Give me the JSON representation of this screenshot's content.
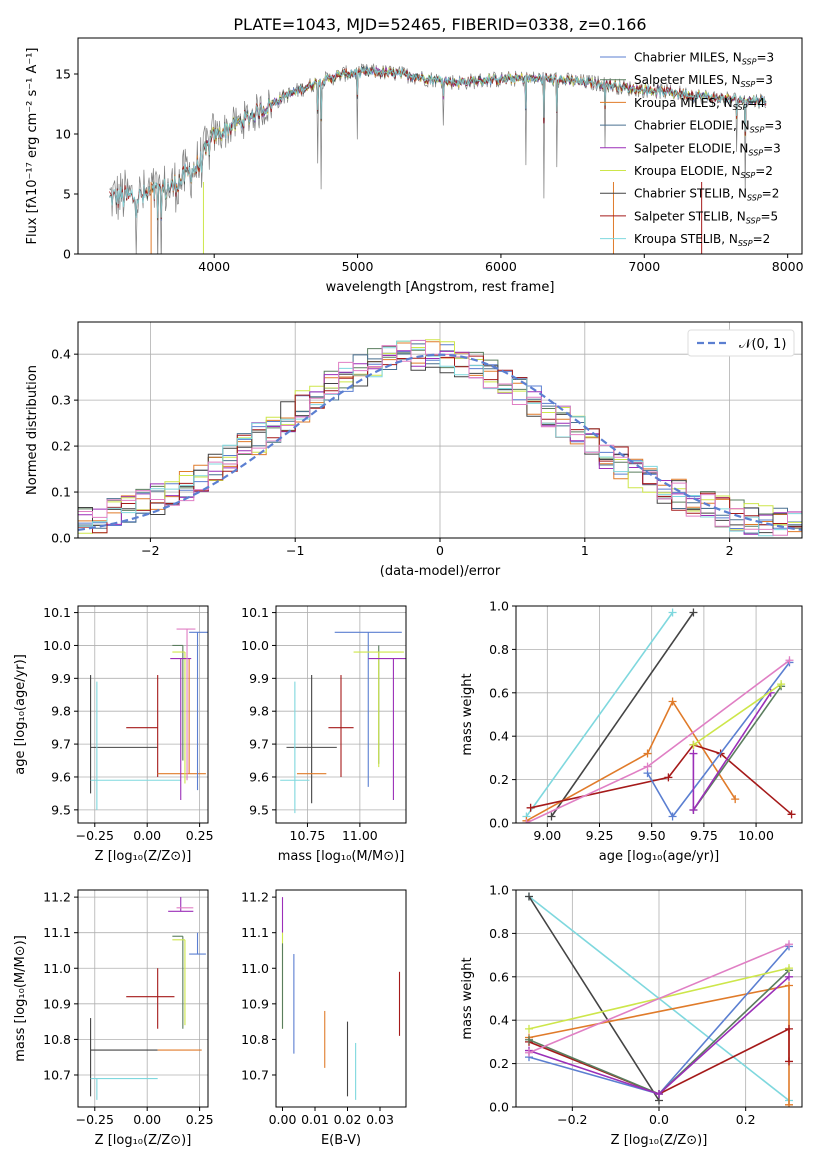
{
  "chart_data": [
    {
      "id": "spectrum",
      "type": "line",
      "title": "PLATE=1043, MJD=52465, FIBERID=0338, z=0.166",
      "xlabel": "wavelength [Angstrom, rest frame]",
      "ylabel": "Flux [fλ10⁻¹⁷ erg cm⁻² s⁻¹ A⁻¹]",
      "xlim": [
        3050,
        8100
      ],
      "ylim": [
        0,
        18
      ],
      "xticks": [
        4000,
        5000,
        6000,
        7000,
        8000
      ],
      "yticks": [
        0,
        5,
        10,
        15
      ],
      "legend_position": "right",
      "observed_color": "#808080",
      "continuum_x": [
        3270,
        3500,
        3700,
        3900,
        4000,
        4150,
        4300,
        4500,
        4700,
        4900,
        5100,
        5300,
        5500,
        5700,
        5900,
        6100,
        6300,
        6500,
        6700,
        6900,
        7100,
        7300,
        7500,
        7700,
        7850
      ],
      "continuum_y": [
        4.7,
        4.8,
        5.5,
        7.5,
        9.8,
        10.8,
        11.8,
        13.2,
        14.2,
        15.0,
        15.2,
        15.0,
        14.6,
        14.3,
        14.5,
        14.6,
        14.6,
        14.4,
        14.2,
        13.8,
        13.6,
        13.3,
        13.0,
        12.8,
        12.8
      ],
      "series": [
        {
          "name": "Chabrier MILES, N$_{SSP}$=3",
          "label_main": "Chabrier MILES, N",
          "label_sub": "SSP",
          "label_tail": "=3",
          "color": "#5b7fd1",
          "x_start": 3520
        },
        {
          "name": "Salpeter MILES, N$_{SSP}$=3",
          "label_main": "Salpeter MILES, N",
          "label_sub": "SSP",
          "label_tail": "=3",
          "color": "#5a7d5e",
          "x_start": 3520
        },
        {
          "name": "Kroupa MILES, N$_{SSP}$=4",
          "label_main": "Kroupa MILES, N",
          "label_sub": "SSP",
          "label_tail": "=4",
          "color": "#e07b2a",
          "x_start": 3520
        },
        {
          "name": "Chabrier ELODIE, N$_{SSP}$=3",
          "label_main": "Chabrier ELODIE, N",
          "label_sub": "SSP",
          "label_tail": "=3",
          "color": "#4a7090",
          "x_start": 3920
        },
        {
          "name": "Salpeter ELODIE, N$_{SSP}$=3",
          "label_main": "Salpeter ELODIE, N",
          "label_sub": "SSP",
          "label_tail": "=3",
          "color": "#9b2fb8",
          "x_start": 3920
        },
        {
          "name": "Kroupa ELODIE, N$_{SSP}$=2",
          "label_main": "Kroupa ELODIE, N",
          "label_sub": "SSP",
          "label_tail": "=2",
          "color": "#cde64a",
          "x_start": 3920
        },
        {
          "name": "Chabrier STELIB, N$_{SSP}$=2",
          "label_main": "Chabrier STELIB, N",
          "label_sub": "SSP",
          "label_tail": "=2",
          "color": "#444444",
          "x_start": 3270
        },
        {
          "name": "Salpeter STELIB, N$_{SSP}$=5",
          "label_main": "Salpeter STELIB, N",
          "label_sub": "SSP",
          "label_tail": "=5",
          "color": "#a51a1a",
          "x_start": 3270
        },
        {
          "name": "Kroupa STELIB, N$_{SSP}$=2",
          "label_main": "Kroupa STELIB, N",
          "label_sub": "SSP",
          "label_tail": "=2",
          "color": "#7fd8de",
          "x_start": 3270
        }
      ]
    },
    {
      "id": "residuals",
      "type": "histogram",
      "xlabel": "(data-model)/error",
      "ylabel": "Normed distribution",
      "xlim": [
        -2.5,
        2.5
      ],
      "ylim": [
        0,
        0.47
      ],
      "xticks": [
        -2,
        -1,
        0,
        1,
        2
      ],
      "yticks": [
        0.0,
        0.1,
        0.2,
        0.3,
        0.4
      ],
      "grid": true,
      "legend_position": "top-right",
      "reference_curve": {
        "label": "𝒩(0, 1)",
        "color": "#5b7fd1",
        "mean": 0,
        "sigma": 1
      },
      "bin_width": 0.1,
      "bin_start": -2.5,
      "colors": [
        "#5b7fd1",
        "#5a7d5e",
        "#e07b2a",
        "#4a7090",
        "#9b2fb8",
        "#cde64a",
        "#444444",
        "#a51a1a",
        "#7fd8de",
        "#e07fc4"
      ]
    },
    {
      "id": "age_vs_Z",
      "type": "errorbar",
      "xlabel": "Z [log₁₀(Z/Z⊙)]",
      "ylabel": "age  [log₁₀(age/yr)]",
      "xlim": [
        -0.33,
        0.29
      ],
      "ylim": [
        9.46,
        10.12
      ],
      "xticks": [
        -0.25,
        0.0,
        0.25
      ],
      "xtick_labels": [
        "−0.25",
        "0.00",
        "0.25"
      ],
      "yticks": [
        9.5,
        9.6,
        9.7,
        9.8,
        9.9,
        10.0,
        10.1
      ],
      "grid": true,
      "points": [
        {
          "color": "#444444",
          "x": -0.27,
          "xerr": [
            0.0,
            0.32
          ],
          "y": 9.69,
          "yerr": [
            0.14,
            0.22
          ]
        },
        {
          "color": "#7fd8de",
          "x": -0.24,
          "xerr": [
            0.03,
            0.4
          ],
          "y": 9.59,
          "yerr": [
            0.09,
            0.3
          ]
        },
        {
          "color": "#a51a1a",
          "x": 0.05,
          "xerr": [
            0.15,
            0.0
          ],
          "y": 9.75,
          "yerr": [
            0.15,
            0.16
          ]
        },
        {
          "color": "#e07b2a",
          "x": 0.2,
          "xerr": [
            0.15,
            0.08
          ],
          "y": 9.61,
          "yerr": [
            0.0,
            0.35
          ]
        },
        {
          "color": "#5a7d5e",
          "x": 0.17,
          "xerr": [
            0.05,
            0.0
          ],
          "y": 10.0,
          "yerr": [
            0.35,
            0.0
          ]
        },
        {
          "color": "#cde64a",
          "x": 0.18,
          "xerr": [
            0.06,
            0.0
          ],
          "y": 9.98,
          "yerr": [
            0.4,
            0.0
          ]
        },
        {
          "color": "#9b2fb8",
          "x": 0.16,
          "xerr": [
            0.05,
            0.05
          ],
          "y": 9.96,
          "yerr": [
            0.43,
            0.0
          ]
        },
        {
          "color": "#5b7fd1",
          "x": 0.24,
          "xerr": [
            0.04,
            0.05
          ],
          "y": 10.04,
          "yerr": [
            0.48,
            0.0
          ]
        },
        {
          "color": "#e07fc4",
          "x": 0.19,
          "xerr": [
            0.05,
            0.04
          ],
          "y": 10.05,
          "yerr": [
            0.46,
            0.0
          ]
        }
      ]
    },
    {
      "id": "age_vs_mass",
      "type": "errorbar",
      "xlabel": "mass [log₁₀(M/M⊙)]",
      "ylabel": "",
      "xlim": [
        10.6,
        11.22
      ],
      "ylim": [
        9.46,
        10.12
      ],
      "xticks": [
        10.75,
        11.0
      ],
      "xtick_labels": [
        "10.75",
        "11.00"
      ],
      "yticks": [
        9.5,
        9.6,
        9.7,
        9.8,
        9.9,
        10.0,
        10.1
      ],
      "grid": true,
      "points": [
        {
          "color": "#444444",
          "x": 10.77,
          "xerr": [
            0.12,
            0.12
          ],
          "y": 9.69,
          "yerr": [
            0.17,
            0.22
          ]
        },
        {
          "color": "#7fd8de",
          "x": 10.69,
          "xerr": [
            0.07,
            0.07
          ],
          "y": 9.59,
          "yerr": [
            0.1,
            0.3
          ]
        },
        {
          "color": "#a51a1a",
          "x": 10.91,
          "xerr": [
            0.06,
            0.06
          ],
          "y": 9.75,
          "yerr": [
            0.15,
            0.16
          ]
        },
        {
          "color": "#e07b2a",
          "x": 10.77,
          "xerr": [
            0.07,
            0.07
          ],
          "y": 9.61,
          "yerr": [
            0.0,
            0.0
          ]
        },
        {
          "color": "#5b7fd1",
          "x": 11.04,
          "xerr": [
            0.16,
            0.16
          ],
          "y": 10.04,
          "yerr": [
            0.47,
            0.0
          ]
        },
        {
          "color": "#5a7d5e",
          "x": 11.09,
          "xerr": [
            0.0,
            0.0
          ],
          "y": 10.0,
          "yerr": [
            0.36,
            0.0
          ]
        },
        {
          "color": "#cde64a",
          "x": 11.09,
          "xerr": [
            0.12,
            0.12
          ],
          "y": 9.98,
          "yerr": [
            0.35,
            0.0
          ]
        },
        {
          "color": "#9b2fb8",
          "x": 11.16,
          "xerr": [
            0.12,
            0.12
          ],
          "y": 9.96,
          "yerr": [
            0.43,
            0.0
          ]
        },
        {
          "color": "#e07fc4",
          "x": 11.16,
          "xerr": [
            0.0,
            0.0
          ],
          "y": 10.05,
          "yerr": [
            0.0,
            0.0
          ]
        }
      ]
    },
    {
      "id": "weight_vs_age",
      "type": "line",
      "xlabel": "age  [log₁₀(age/yr)]",
      "ylabel": "mass weight",
      "xlim": [
        8.85,
        10.22
      ],
      "ylim": [
        0.0,
        1.0
      ],
      "xticks": [
        9.0,
        9.25,
        9.5,
        9.75,
        10.0
      ],
      "xtick_labels": [
        "9.00",
        "9.25",
        "9.50",
        "9.75",
        "10.00"
      ],
      "yticks": [
        0.0,
        0.2,
        0.4,
        0.6,
        0.8,
        1.0
      ],
      "grid": true,
      "series": [
        {
          "color": "#7fd8de",
          "x": [
            8.9,
            9.6
          ],
          "y": [
            0.03,
            0.97
          ]
        },
        {
          "color": "#444444",
          "x": [
            9.02,
            9.7
          ],
          "y": [
            0.03,
            0.97
          ]
        },
        {
          "color": "#e07b2a",
          "x": [
            8.9,
            9.48,
            9.6,
            9.9
          ],
          "y": [
            0.01,
            0.32,
            0.56,
            0.11
          ]
        },
        {
          "color": "#a51a1a",
          "x": [
            8.92,
            9.58,
            9.7,
            9.83,
            10.17
          ],
          "y": [
            0.07,
            0.21,
            0.36,
            0.32,
            0.04
          ]
        },
        {
          "color": "#5b7fd1",
          "x": [
            9.48,
            9.6,
            10.16
          ],
          "y": [
            0.23,
            0.03,
            0.74
          ]
        },
        {
          "color": "#5a7d5e",
          "x": [
            9.7,
            10.12
          ],
          "y": [
            0.06,
            0.63
          ]
        },
        {
          "color": "#9b2fb8",
          "x": [
            9.7,
            9.7,
            10.07
          ],
          "y": [
            0.32,
            0.06,
            0.6
          ]
        },
        {
          "color": "#cde64a",
          "x": [
            9.7,
            10.12
          ],
          "y": [
            0.36,
            0.64
          ]
        },
        {
          "color": "#e07fc4",
          "x": [
            8.9,
            9.48,
            10.16
          ],
          "y": [
            0.0,
            0.26,
            0.75
          ]
        }
      ]
    },
    {
      "id": "mass_vs_Z",
      "type": "errorbar",
      "xlabel": "Z [log₁₀(Z/Z⊙)]",
      "ylabel": "mass [log₁₀(M/M⊙)]",
      "xlim": [
        -0.33,
        0.29
      ],
      "ylim": [
        10.61,
        11.22
      ],
      "xticks": [
        -0.25,
        0.0,
        0.25
      ],
      "xtick_labels": [
        "−0.25",
        "0.00",
        "0.25"
      ],
      "yticks": [
        10.7,
        10.8,
        10.9,
        11.0,
        11.1,
        11.2
      ],
      "grid": true,
      "points": [
        {
          "color": "#444444",
          "x": -0.27,
          "xerr": [
            0.0,
            0.32
          ],
          "y": 10.77,
          "yerr": [
            0.13,
            0.09
          ]
        },
        {
          "color": "#7fd8de",
          "x": -0.24,
          "xerr": [
            0.03,
            0.29
          ],
          "y": 10.69,
          "yerr": [
            0.06,
            0.0
          ]
        },
        {
          "color": "#a51a1a",
          "x": 0.05,
          "xerr": [
            0.15,
            0.08
          ],
          "y": 10.92,
          "yerr": [
            0.09,
            0.08
          ]
        },
        {
          "color": "#e07b2a",
          "x": 0.2,
          "xerr": [
            0.15,
            0.06
          ],
          "y": 10.77,
          "yerr": [
            0.0,
            0.0
          ]
        },
        {
          "color": "#5a7d5e",
          "x": 0.17,
          "xerr": [
            0.05,
            0.0
          ],
          "y": 11.09,
          "yerr": [
            0.26,
            0.0
          ]
        },
        {
          "color": "#cde64a",
          "x": 0.18,
          "xerr": [
            0.06,
            0.0
          ],
          "y": 11.08,
          "yerr": [
            0.24,
            0.0
          ]
        },
        {
          "color": "#9b2fb8",
          "x": 0.16,
          "xerr": [
            0.06,
            0.06
          ],
          "y": 11.16,
          "yerr": [
            0.0,
            0.04
          ]
        },
        {
          "color": "#5b7fd1",
          "x": 0.24,
          "xerr": [
            0.04,
            0.04
          ],
          "y": 11.04,
          "yerr": [
            0.0,
            0.06
          ]
        },
        {
          "color": "#e07fc4",
          "x": 0.19,
          "xerr": [
            0.05,
            0.03
          ],
          "y": 11.17,
          "yerr": [
            0.0,
            0.0
          ]
        }
      ]
    },
    {
      "id": "mass_vs_EBV",
      "type": "errorbar",
      "xlabel": "E(B-V)",
      "ylabel": "",
      "xlim": [
        -0.002,
        0.038
      ],
      "ylim": [
        10.61,
        11.22
      ],
      "xticks": [
        0.0,
        0.01,
        0.02,
        0.03
      ],
      "xtick_labels": [
        "0.00",
        "0.01",
        "0.02",
        "0.03"
      ],
      "yticks": [
        10.7,
        10.8,
        10.9,
        11.0,
        11.1,
        11.2
      ],
      "grid": false,
      "points": [
        {
          "color": "#9b2fb8",
          "x": 0.0,
          "xerr": [
            0,
            0
          ],
          "y": 11.1,
          "yerr": [
            0.0,
            0.1
          ]
        },
        {
          "color": "#cde64a",
          "x": 0.0,
          "xerr": [
            0,
            0
          ],
          "y": 10.96,
          "yerr": [
            0.13,
            0.14
          ]
        },
        {
          "color": "#5a7d5e",
          "x": 0.0,
          "xerr": [
            0,
            0
          ],
          "y": 10.95,
          "yerr": [
            0.12,
            0.12
          ]
        },
        {
          "color": "#5b7fd1",
          "x": 0.0035,
          "xerr": [
            0,
            0
          ],
          "y": 10.9,
          "yerr": [
            0.14,
            0.14
          ]
        },
        {
          "color": "#e07b2a",
          "x": 0.013,
          "xerr": [
            0,
            0
          ],
          "y": 10.8,
          "yerr": [
            0.08,
            0.08
          ]
        },
        {
          "color": "#444444",
          "x": 0.02,
          "xerr": [
            0,
            0
          ],
          "y": 10.75,
          "yerr": [
            0.11,
            0.1
          ]
        },
        {
          "color": "#7fd8de",
          "x": 0.0225,
          "xerr": [
            0,
            0
          ],
          "y": 10.71,
          "yerr": [
            0.08,
            0.08
          ]
        },
        {
          "color": "#a51a1a",
          "x": 0.036,
          "xerr": [
            0,
            0
          ],
          "y": 10.9,
          "yerr": [
            0.09,
            0.09
          ]
        }
      ]
    },
    {
      "id": "weight_vs_Z",
      "type": "line",
      "xlabel": "Z [log₁₀(Z/Z⊙)]",
      "ylabel": "mass weight",
      "xlim": [
        -0.33,
        0.33
      ],
      "ylim": [
        0.0,
        1.0
      ],
      "xticks": [
        -0.2,
        0.0,
        0.2
      ],
      "xtick_labels": [
        "−0.2",
        "0.0",
        "0.2"
      ],
      "yticks": [
        0.0,
        0.2,
        0.4,
        0.6,
        0.8,
        1.0
      ],
      "grid": true,
      "series": [
        {
          "color": "#7fd8de",
          "x": [
            -0.3,
            0.3
          ],
          "y": [
            0.97,
            0.03
          ]
        },
        {
          "color": "#444444",
          "x": [
            -0.3,
            0.0
          ],
          "y": [
            0.97,
            0.03
          ]
        },
        {
          "color": "#e07b2a",
          "x": [
            -0.3,
            0.3,
            0.3
          ],
          "y": [
            0.32,
            0.56,
            0.01
          ]
        },
        {
          "color": "#a51a1a",
          "x": [
            -0.3,
            0.0,
            0.3,
            0.3
          ],
          "y": [
            0.3,
            0.06,
            0.36,
            0.21
          ]
        },
        {
          "color": "#5b7fd1",
          "x": [
            -0.3,
            0.0,
            0.3
          ],
          "y": [
            0.23,
            0.06,
            0.74
          ]
        },
        {
          "color": "#5a7d5e",
          "x": [
            -0.3,
            0.0,
            0.3
          ],
          "y": [
            0.31,
            0.06,
            0.63
          ]
        },
        {
          "color": "#9b2fb8",
          "x": [
            -0.3,
            0.0,
            0.3
          ],
          "y": [
            0.26,
            0.06,
            0.6
          ]
        },
        {
          "color": "#cde64a",
          "x": [
            -0.3,
            0.3
          ],
          "y": [
            0.36,
            0.64
          ]
        },
        {
          "color": "#e07fc4",
          "x": [
            -0.3,
            0.3
          ],
          "y": [
            0.25,
            0.75
          ]
        }
      ]
    }
  ]
}
